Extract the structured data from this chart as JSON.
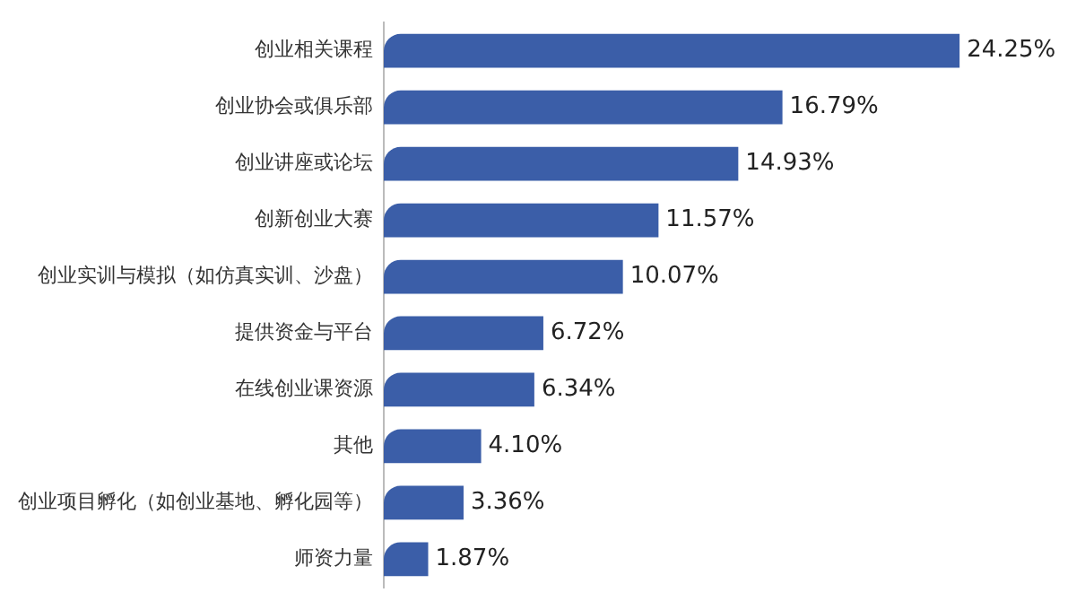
{
  "chart_data": {
    "type": "bar",
    "orientation": "horizontal",
    "categories": [
      "创业相关课程",
      "创业协会或俱乐部",
      "创业讲座或论坛",
      "创新创业大赛",
      "创业实训与模拟（如仿真实训、沙盘）",
      "提供资金与平台",
      "在线创业课资源",
      "其他",
      "创业项目孵化（如创业基地、孵化园等）",
      "师资力量"
    ],
    "values": [
      24.25,
      16.79,
      14.93,
      11.57,
      10.07,
      6.72,
      6.34,
      4.1,
      3.36,
      1.87
    ],
    "value_labels": [
      "24.25%",
      "16.79%",
      "14.93%",
      "11.57%",
      "10.07%",
      "6.72%",
      "6.34%",
      "4.10%",
      "3.36%",
      "1.87%"
    ],
    "color": "#3b5ea8",
    "legend": false
  }
}
